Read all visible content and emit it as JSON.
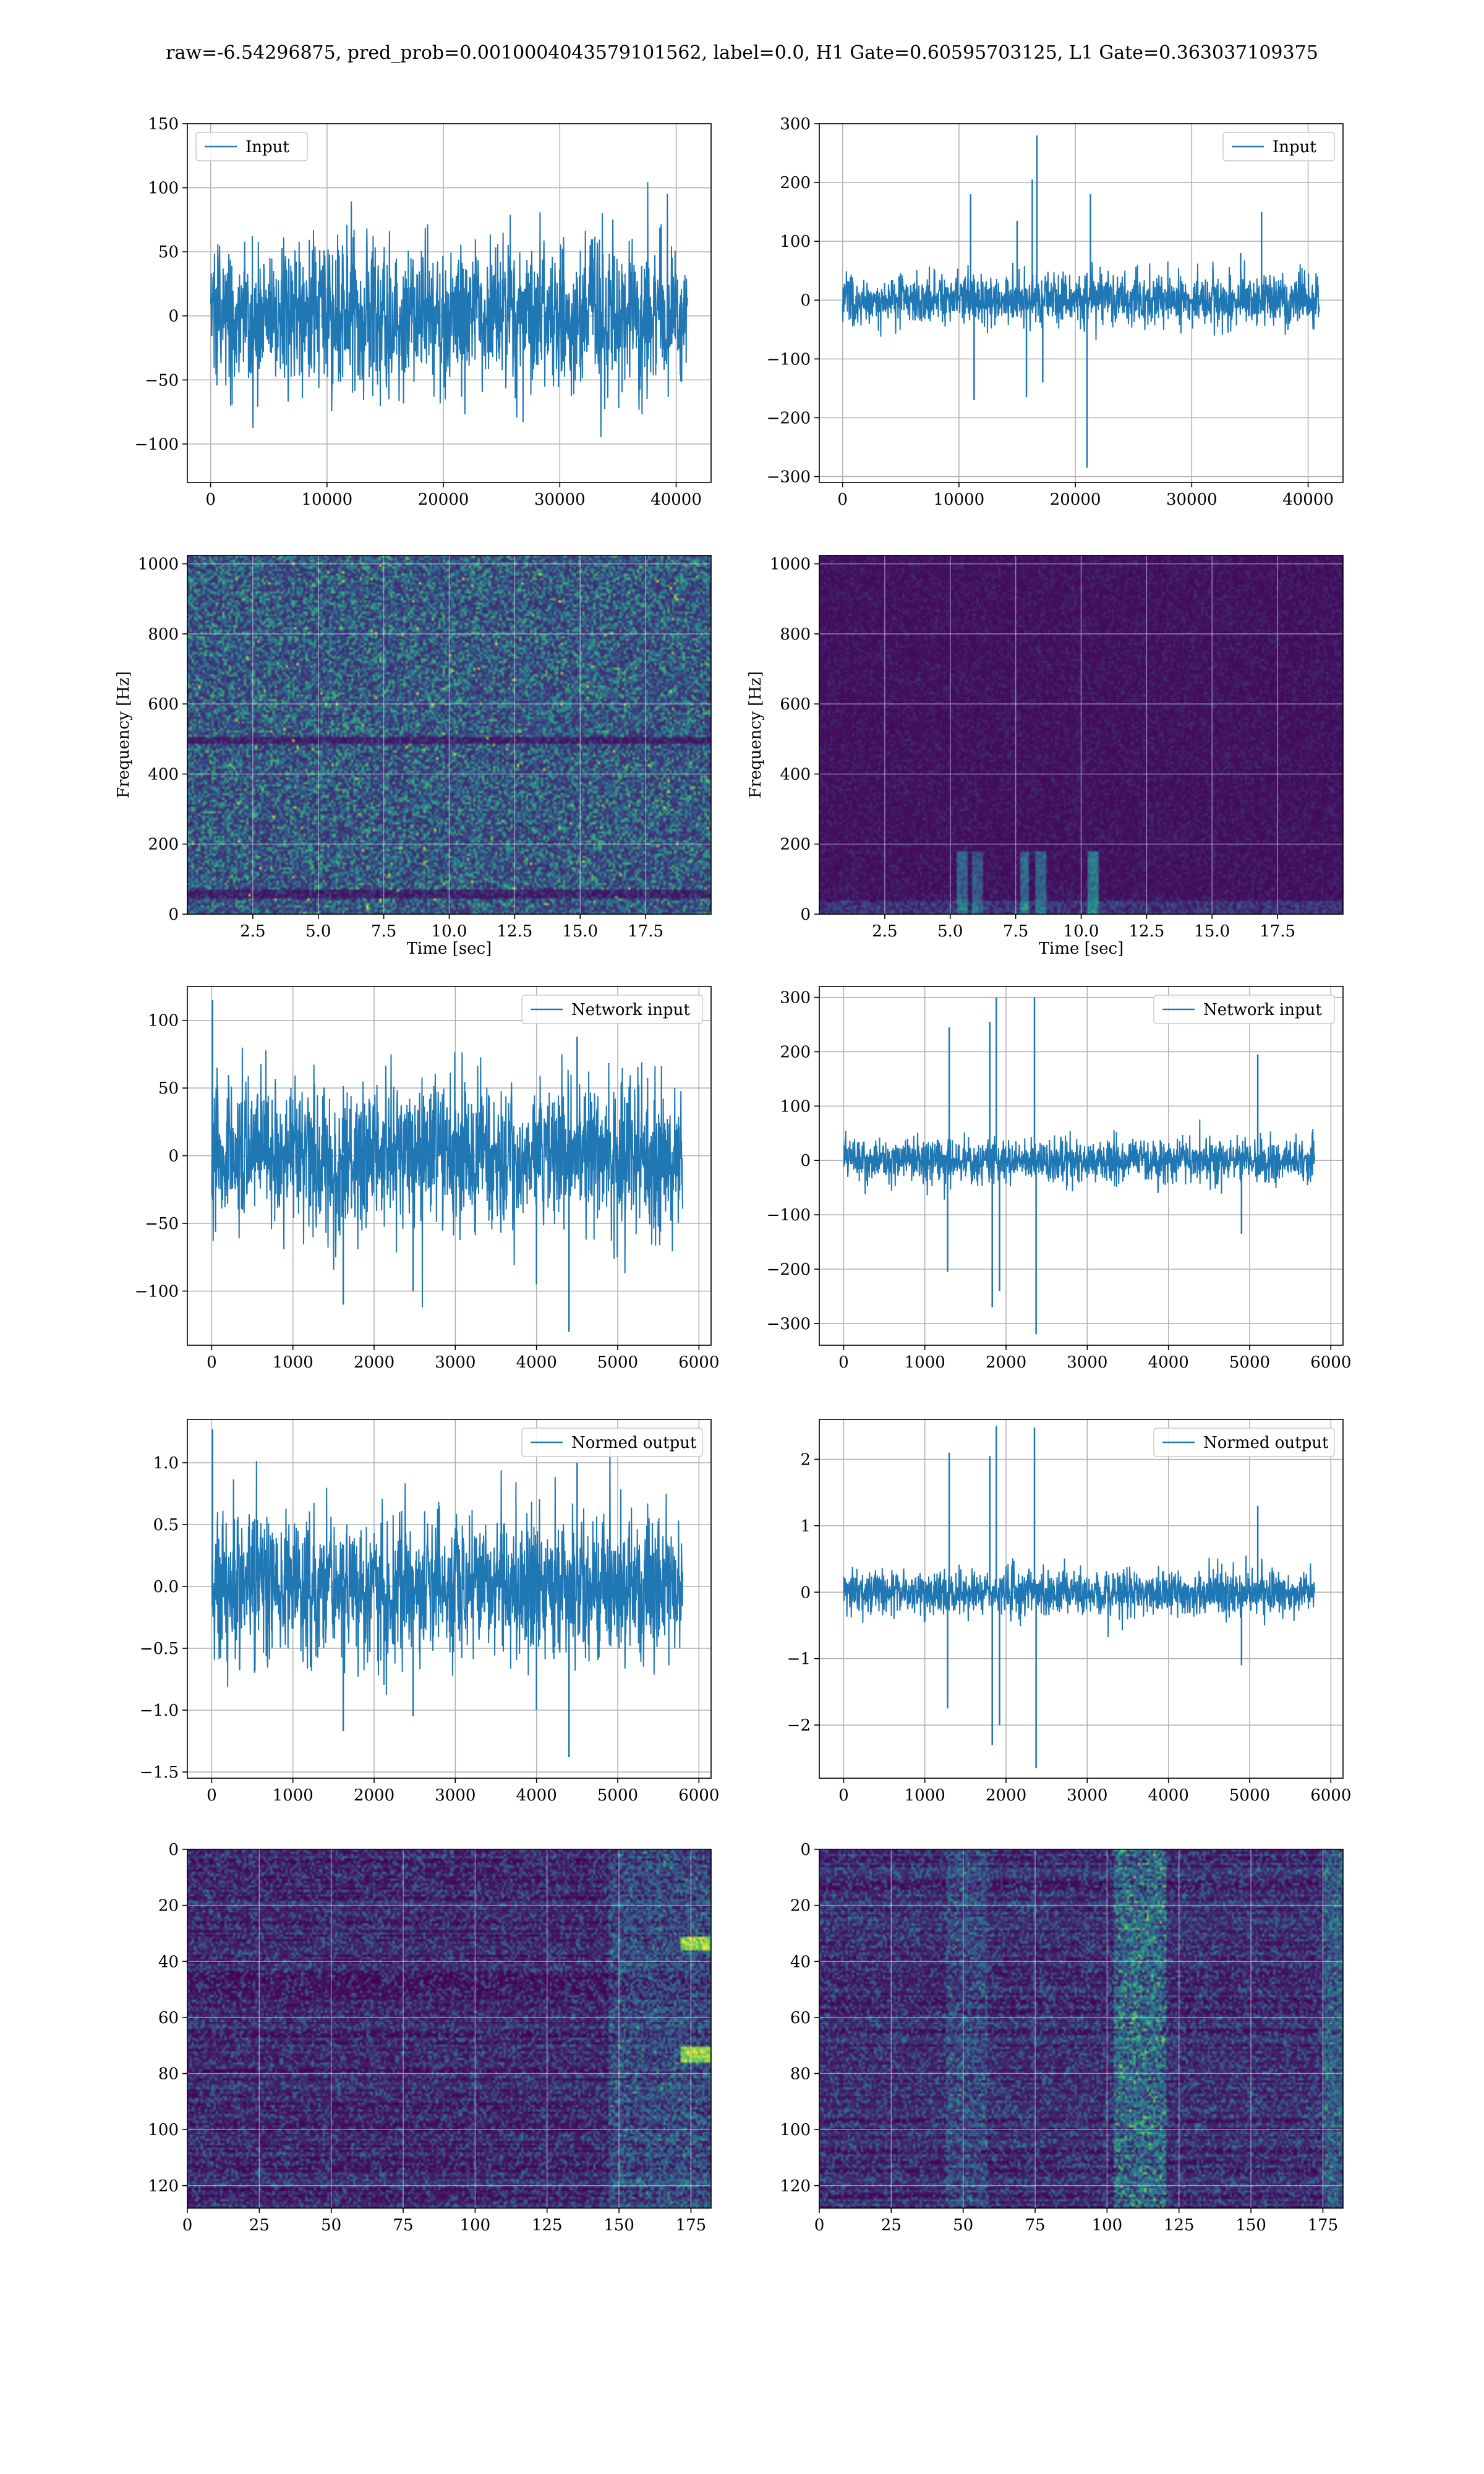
{
  "figure": {
    "suptitle": "raw=-6.54296875, pred_prob=0.0010004043579101562, label=0.0, H1 Gate=0.60595703125, L1 Gate=0.363037109375"
  },
  "colors": {
    "line": "#1f77b4",
    "grid": "#b0b0b0",
    "viridis": [
      "#440154",
      "#3b528b",
      "#21918c",
      "#5ec962",
      "#fde725"
    ]
  },
  "chart_data": [
    {
      "id": "input-h1",
      "type": "line",
      "row": 0,
      "col": 0,
      "legend": "Input",
      "legend_loc": "upper-left",
      "xlim": [
        -2000,
        43000
      ],
      "ylim": [
        -130,
        150
      ],
      "xticks": [
        0,
        10000,
        20000,
        30000,
        40000
      ],
      "yticks": [
        -100,
        -50,
        0,
        50,
        100,
        150
      ],
      "signal": {
        "x_end": 40960,
        "sigma": 28,
        "spikes": []
      }
    },
    {
      "id": "input-l1",
      "type": "line",
      "row": 0,
      "col": 1,
      "legend": "Input",
      "legend_loc": "upper-right",
      "xlim": [
        -2000,
        43000
      ],
      "ylim": [
        -310,
        300
      ],
      "xticks": [
        0,
        10000,
        20000,
        30000,
        40000
      ],
      "yticks": [
        -300,
        -200,
        -100,
        0,
        100,
        200,
        300
      ],
      "signal": {
        "x_end": 40960,
        "sigma": 22,
        "spikes": [
          [
            11000,
            180
          ],
          [
            11300,
            -170
          ],
          [
            15000,
            135
          ],
          [
            15800,
            -165
          ],
          [
            16300,
            205
          ],
          [
            16700,
            280
          ],
          [
            17200,
            -140
          ],
          [
            21000,
            -285
          ],
          [
            21300,
            180
          ],
          [
            34200,
            80
          ],
          [
            36000,
            150
          ]
        ]
      }
    },
    {
      "id": "spectrogram-h1",
      "type": "heatmap",
      "row": 1,
      "col": 0,
      "xlabel": "Time [sec]",
      "ylabel": "Frequency [Hz]",
      "xlim": [
        0,
        20
      ],
      "ylim": [
        0,
        1024
      ],
      "xticks": [
        2.5,
        5.0,
        7.5,
        10.0,
        12.5,
        15.0,
        17.5
      ],
      "xticklabels": [
        "2.5",
        "5.0",
        "7.5",
        "10.0",
        "12.5",
        "15.0",
        "17.5"
      ],
      "yticks": [
        0,
        200,
        400,
        600,
        800,
        1000
      ],
      "pattern": "noisy-bright"
    },
    {
      "id": "spectrogram-l1",
      "type": "heatmap",
      "row": 1,
      "col": 1,
      "xlabel": "Time [sec]",
      "ylabel": "Frequency [Hz]",
      "xlim": [
        0,
        20
      ],
      "ylim": [
        0,
        1024
      ],
      "xticks": [
        2.5,
        5.0,
        7.5,
        10.0,
        12.5,
        15.0,
        17.5
      ],
      "xticklabels": [
        "2.5",
        "5.0",
        "7.5",
        "10.0",
        "12.5",
        "15.0",
        "17.5"
      ],
      "yticks": [
        0,
        200,
        400,
        600,
        800,
        1000
      ],
      "pattern": "dark-with-glitches"
    },
    {
      "id": "network-input-h1",
      "type": "line",
      "row": 2,
      "col": 0,
      "legend": "Network input",
      "legend_loc": "upper-right",
      "xlim": [
        -300,
        6150
      ],
      "ylim": [
        -140,
        125
      ],
      "xticks": [
        0,
        1000,
        2000,
        3000,
        4000,
        5000,
        6000
      ],
      "yticks": [
        -100,
        -50,
        0,
        50,
        100
      ],
      "signal": {
        "x_end": 5800,
        "sigma": 27,
        "spikes": [
          [
            10,
            115
          ],
          [
            1620,
            -110
          ],
          [
            2480,
            -100
          ],
          [
            4000,
            -95
          ],
          [
            4400,
            -130
          ],
          [
            4500,
            88
          ]
        ]
      }
    },
    {
      "id": "network-input-l1",
      "type": "line",
      "row": 2,
      "col": 1,
      "legend": "Network input",
      "legend_loc": "upper-right",
      "xlim": [
        -300,
        6150
      ],
      "ylim": [
        -340,
        320
      ],
      "xticks": [
        0,
        1000,
        2000,
        3000,
        4000,
        5000,
        6000
      ],
      "yticks": [
        -300,
        -200,
        -100,
        0,
        100,
        200,
        300
      ],
      "signal": {
        "x_end": 5800,
        "sigma": 20,
        "spikes": [
          [
            1280,
            -205
          ],
          [
            1300,
            245
          ],
          [
            1800,
            255
          ],
          [
            1830,
            -270
          ],
          [
            1880,
            300
          ],
          [
            1920,
            -240
          ],
          [
            2350,
            300
          ],
          [
            2370,
            -320
          ],
          [
            5100,
            195
          ],
          [
            4900,
            -135
          ]
        ]
      }
    },
    {
      "id": "normed-output-h1",
      "type": "line",
      "row": 3,
      "col": 0,
      "legend": "Normed output",
      "legend_loc": "upper-right",
      "xlim": [
        -300,
        6150
      ],
      "ylim": [
        -1.55,
        1.35
      ],
      "xticks": [
        0,
        1000,
        2000,
        3000,
        4000,
        5000,
        6000
      ],
      "yticks": [
        -1.5,
        -1.0,
        -0.5,
        0.0,
        0.5,
        1.0
      ],
      "yticklabels": [
        "−1.5",
        "−1.0",
        "−0.5",
        "0.0",
        "0.5",
        "1.0"
      ],
      "signal": {
        "x_end": 5800,
        "sigma": 0.28,
        "spikes": [
          [
            10,
            1.27
          ],
          [
            1620,
            -1.17
          ],
          [
            2480,
            -1.05
          ],
          [
            4000,
            -1.0
          ],
          [
            4400,
            -1.38
          ],
          [
            4500,
            1.0
          ]
        ]
      }
    },
    {
      "id": "normed-output-l1",
      "type": "line",
      "row": 3,
      "col": 1,
      "legend": "Normed output",
      "legend_loc": "upper-right",
      "xlim": [
        -300,
        6150
      ],
      "ylim": [
        -2.8,
        2.6
      ],
      "xticks": [
        0,
        1000,
        2000,
        3000,
        4000,
        5000,
        6000
      ],
      "yticks": [
        -2,
        -1,
        0,
        1,
        2
      ],
      "signal": {
        "x_end": 5800,
        "sigma": 0.17,
        "spikes": [
          [
            1280,
            -1.75
          ],
          [
            1300,
            2.1
          ],
          [
            1800,
            2.05
          ],
          [
            1830,
            -2.3
          ],
          [
            1880,
            2.5
          ],
          [
            1920,
            -2.0
          ],
          [
            2350,
            2.48
          ],
          [
            2370,
            -2.65
          ],
          [
            5100,
            1.3
          ],
          [
            4900,
            -1.1
          ]
        ]
      }
    },
    {
      "id": "features-h1",
      "type": "heatmap",
      "row": 4,
      "col": 0,
      "xlim": [
        0,
        182
      ],
      "ylim": [
        128,
        0
      ],
      "xticks": [
        0,
        25,
        50,
        75,
        100,
        125,
        150,
        175
      ],
      "yticks": [
        0,
        20,
        40,
        60,
        80,
        100,
        120
      ],
      "pattern": "features-h1"
    },
    {
      "id": "features-l1",
      "type": "heatmap",
      "row": 4,
      "col": 1,
      "xlim": [
        0,
        182
      ],
      "ylim": [
        128,
        0
      ],
      "xticks": [
        0,
        25,
        50,
        75,
        100,
        125,
        150,
        175
      ],
      "yticks": [
        0,
        20,
        40,
        60,
        80,
        100,
        120
      ],
      "pattern": "features-l1"
    }
  ]
}
